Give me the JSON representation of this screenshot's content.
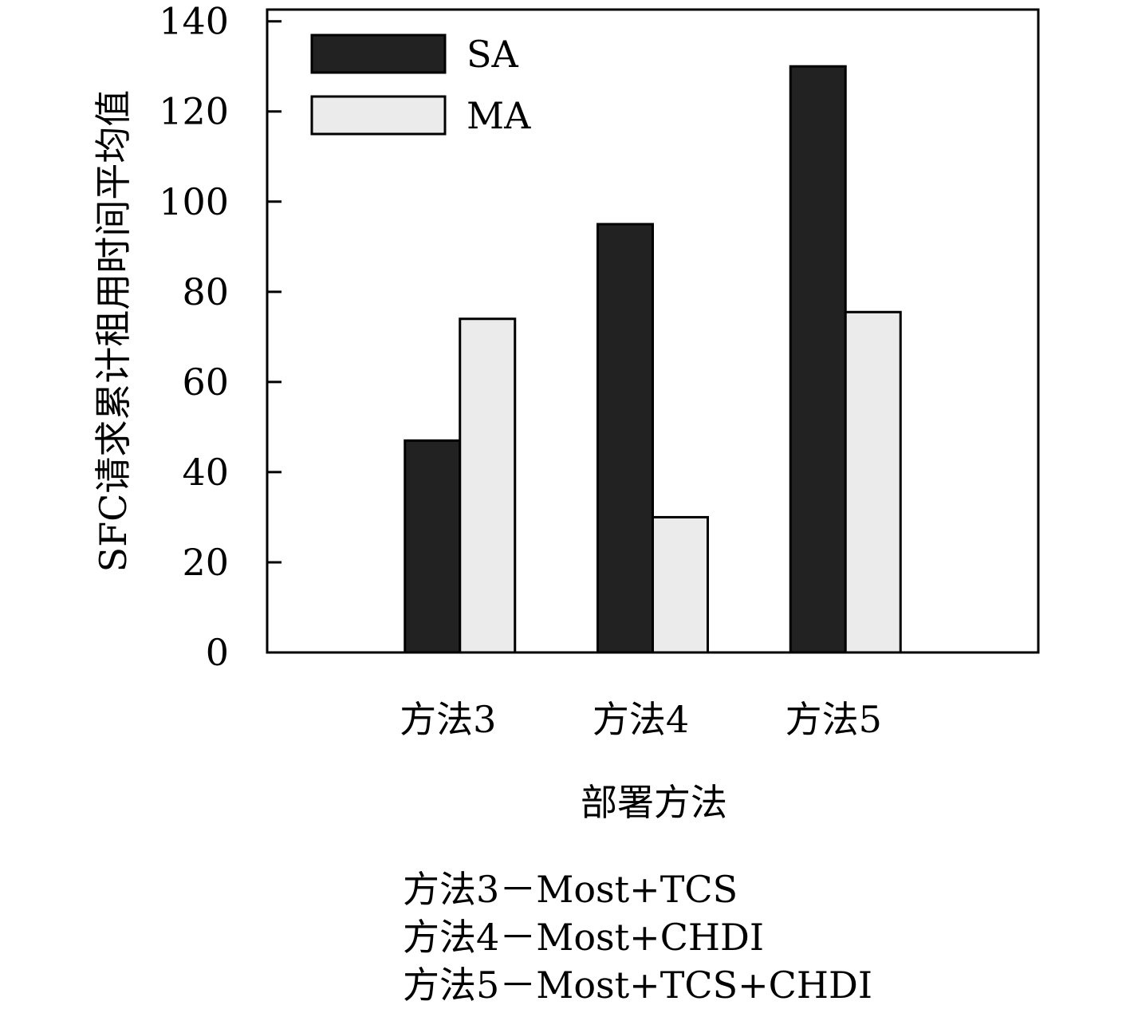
{
  "chart_data": {
    "type": "bar",
    "title": "",
    "xlabel": "部署方法",
    "ylabel": "SFC请求累计租用时间平均值",
    "categories": [
      "方法3",
      "方法4",
      "方法5"
    ],
    "series": [
      {
        "name": "SA",
        "values": [
          47,
          95,
          130
        ],
        "color": "#222222"
      },
      {
        "name": "MA",
        "values": [
          74,
          30,
          75.5
        ],
        "color": "#ebebeb"
      }
    ],
    "ylim": [
      0,
      142.6
    ],
    "yticks": [
      0,
      20,
      40,
      60,
      80,
      100,
      120,
      140
    ],
    "grid": false,
    "legend_position": "top-left",
    "notes": [
      "方法3－Most+TCS",
      "方法4－Most+CHDI",
      "方法5－Most+TCS+CHDI"
    ]
  }
}
